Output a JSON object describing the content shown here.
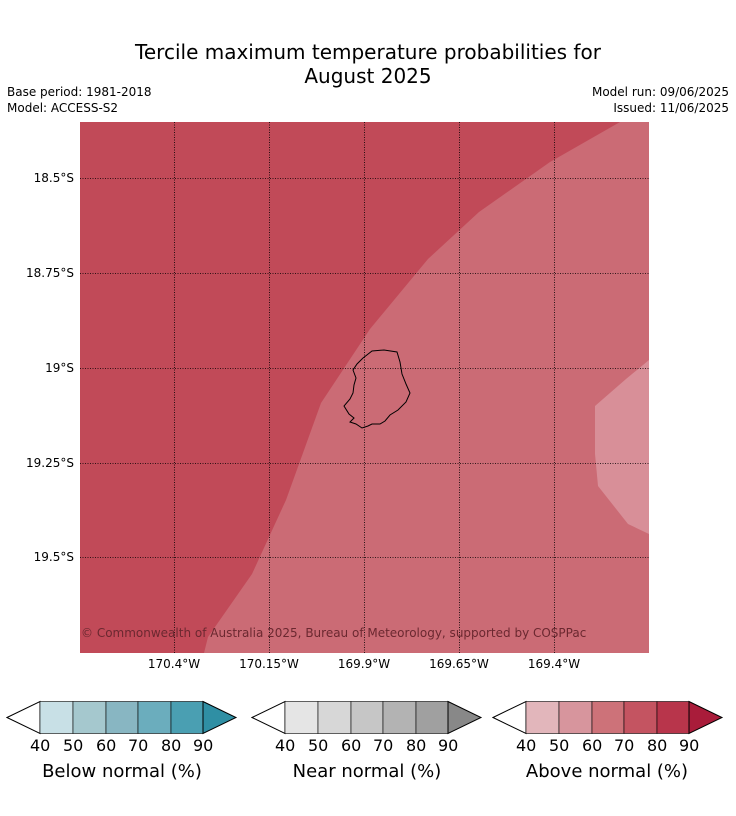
{
  "title_line1": "Tercile maximum temperature probabilities for",
  "title_line2": "August 2025",
  "base_period": "Base period: 1981-2018",
  "model": "Model: ACCESS-S2",
  "model_run": "Model run: 09/06/2025",
  "issued": "Issued: 11/06/2025",
  "map": {
    "lat_labels": [
      "18.5°S",
      "18.75°S",
      "19°S",
      "19.25°S",
      "19.5°S"
    ],
    "lon_labels": [
      "170.4°W",
      "170.15°W",
      "169.9°W",
      "169.65°W",
      "169.4°W"
    ],
    "copyright": "© Commonwealth of Australia 2025, Bureau of Meteorology, supported by COSPPac",
    "region_colors": {
      "above_70_80": "#c14a58",
      "above_60_70": "#cb6b75",
      "above_50_60": "#d88f98"
    }
  },
  "colorbars": [
    {
      "name": "below",
      "title": "Below normal (%)",
      "ticks": [
        "40",
        "50",
        "60",
        "70",
        "80",
        "90"
      ],
      "colors": [
        "#ffffff",
        "#c8e0e6",
        "#a5c8ce",
        "#88b6c2",
        "#6badbd",
        "#4a9fb2",
        "#2f8fa4"
      ]
    },
    {
      "name": "near",
      "title": "Near normal (%)",
      "ticks": [
        "40",
        "50",
        "60",
        "70",
        "80",
        "90"
      ],
      "colors": [
        "#ffffff",
        "#e5e5e5",
        "#d7d7d7",
        "#c6c6c6",
        "#b3b3b3",
        "#a0a0a0",
        "#888888"
      ]
    },
    {
      "name": "above",
      "title": "Above normal (%)",
      "ticks": [
        "40",
        "50",
        "60",
        "70",
        "80",
        "90"
      ],
      "colors": [
        "#ffffff",
        "#e2b6bb",
        "#d7959d",
        "#cd7279",
        "#c45461",
        "#b8354b",
        "#a91c3a"
      ]
    }
  ]
}
